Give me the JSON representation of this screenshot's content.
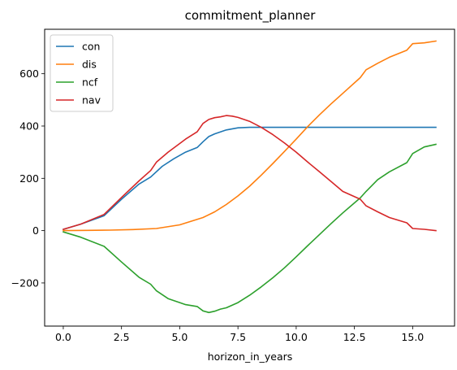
{
  "chart_data": {
    "type": "line",
    "title": "commitment_planner",
    "xlabel": "horizon_in_years",
    "ylabel": "",
    "xlim": [
      -0.8,
      16.8
    ],
    "ylim": [
      -365,
      770
    ],
    "x_ticks": [
      0.0,
      2.5,
      5.0,
      7.5,
      10.0,
      12.5,
      15.0
    ],
    "x_tick_labels": [
      "0.0",
      "2.5",
      "5.0",
      "7.5",
      "10.0",
      "12.5",
      "15.0"
    ],
    "y_ticks": [
      -200,
      0,
      200,
      400,
      600
    ],
    "y_tick_labels": [
      "−200",
      "0",
      "200",
      "400",
      "600"
    ],
    "grid": false,
    "legend_position": "upper-left",
    "series": [
      {
        "name": "con",
        "color": "#1f77b4",
        "x": [
          0,
          0.75,
          1.75,
          2.5,
          3.25,
          3.75,
          4.25,
          4.75,
          5.25,
          5.75,
          6.0,
          6.25,
          6.5,
          7.0,
          7.5,
          8.0,
          8.5,
          9.0,
          10.0,
          11.0,
          12.0,
          13.0,
          14.0,
          15.0,
          16.0
        ],
        "y": [
          5,
          25,
          57,
          120,
          178,
          205,
          246,
          275,
          300,
          318,
          340,
          360,
          370,
          385,
          393,
          395,
          395,
          395,
          395,
          395,
          395,
          395,
          395,
          395,
          395
        ]
      },
      {
        "name": "dis",
        "color": "#ff7f0e",
        "x": [
          0,
          1,
          2,
          3,
          4,
          5,
          6,
          6.5,
          7,
          7.5,
          8,
          8.5,
          9,
          9.5,
          10,
          10.5,
          11,
          11.5,
          12,
          12.75,
          13,
          13.5,
          14,
          14.75,
          15,
          15.5,
          16
        ],
        "y": [
          0,
          1,
          2,
          4,
          8,
          22,
          50,
          72,
          100,
          133,
          170,
          212,
          257,
          303,
          350,
          398,
          443,
          485,
          525,
          585,
          615,
          640,
          663,
          690,
          715,
          718,
          725
        ]
      },
      {
        "name": "ncf",
        "color": "#2ca02c",
        "x": [
          0,
          0.75,
          1.75,
          2.5,
          3.25,
          3.75,
          4.0,
          4.5,
          5.0,
          5.25,
          5.75,
          6.0,
          6.25,
          6.5,
          6.75,
          7.0,
          7.5,
          8.0,
          8.5,
          9.0,
          9.5,
          10.0,
          10.5,
          11.0,
          11.5,
          12.0,
          12.75,
          13.0,
          13.5,
          14.0,
          14.75,
          15.0,
          15.5,
          16.0
        ],
        "y": [
          -5,
          -25,
          -60,
          -120,
          -178,
          -205,
          -230,
          -260,
          -275,
          -283,
          -290,
          -307,
          -313,
          -308,
          -300,
          -295,
          -275,
          -247,
          -215,
          -180,
          -142,
          -100,
          -57,
          -15,
          27,
          68,
          125,
          150,
          195,
          225,
          260,
          295,
          320,
          330
        ]
      },
      {
        "name": "nav",
        "color": "#d62728",
        "x": [
          0,
          0.75,
          1.75,
          2.5,
          3.25,
          3.75,
          4.0,
          4.5,
          5.0,
          5.25,
          5.75,
          6.0,
          6.25,
          6.5,
          6.75,
          7.0,
          7.25,
          7.5,
          8.0,
          8.5,
          9.0,
          9.5,
          10.0,
          10.5,
          11.0,
          11.5,
          12.0,
          12.75,
          13.0,
          13.5,
          14.0,
          14.75,
          15.0,
          15.5,
          16.0
        ],
        "y": [
          5,
          25,
          62,
          127,
          190,
          230,
          262,
          300,
          333,
          350,
          378,
          410,
          425,
          432,
          435,
          440,
          438,
          433,
          418,
          395,
          367,
          335,
          300,
          262,
          225,
          188,
          150,
          120,
          95,
          72,
          50,
          30,
          8,
          5,
          0
        ]
      }
    ]
  }
}
